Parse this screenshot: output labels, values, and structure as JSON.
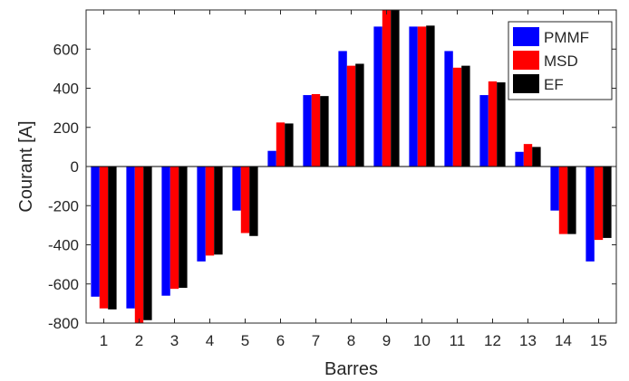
{
  "chart_data": {
    "type": "bar",
    "xlabel": "Barres",
    "ylabel": "Courant [A]",
    "ylim": [
      -800,
      800
    ],
    "yticks": [
      -800,
      -600,
      -400,
      -200,
      0,
      200,
      400,
      600
    ],
    "categories": [
      "1",
      "2",
      "3",
      "4",
      "5",
      "6",
      "7",
      "8",
      "9",
      "10",
      "11",
      "12",
      "13",
      "14",
      "15"
    ],
    "legend_position": "top-right",
    "grid": false,
    "series": [
      {
        "name": "PMMF",
        "color": "#0000ff",
        "values": [
          -665,
          -725,
          -660,
          -485,
          -225,
          80,
          365,
          590,
          715,
          715,
          590,
          365,
          75,
          -225,
          -485
        ]
      },
      {
        "name": "MSD",
        "color": "#ff0000",
        "values": [
          -725,
          -800,
          -625,
          -455,
          -340,
          225,
          370,
          515,
          800,
          715,
          505,
          435,
          115,
          -345,
          -375
        ]
      },
      {
        "name": "EF",
        "color": "#000000",
        "values": [
          -730,
          -785,
          -620,
          -450,
          -355,
          220,
          360,
          525,
          800,
          720,
          515,
          430,
          100,
          -345,
          -365
        ]
      }
    ]
  }
}
